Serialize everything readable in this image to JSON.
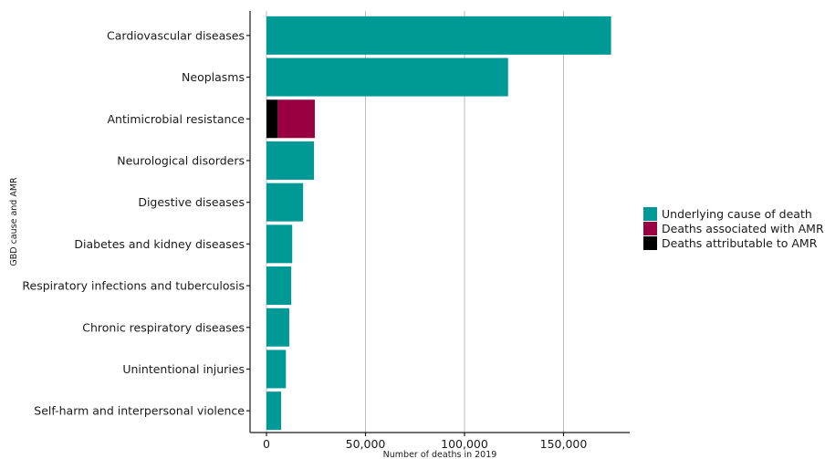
{
  "chart_data": {
    "type": "bar",
    "orientation": "horizontal",
    "stacked": true,
    "title": "",
    "xlabel": "Number of deaths in 2019",
    "ylabel": "GBD cause and AMR",
    "xlim": [
      0,
      182000
    ],
    "xticks": [
      0,
      50000,
      100000,
      150000
    ],
    "xtick_labels": [
      "0",
      "50,000",
      "100,000",
      "150,000"
    ],
    "grid": "vertical",
    "legend_position": "right",
    "categories": [
      "Cardiovascular diseases",
      "Neoplasms",
      "Antimicrobial resistance",
      "Neurological disorders",
      "Digestive diseases",
      "Diabetes and kidney diseases",
      "Respiratory infections and tuberculosis",
      "Chronic respiratory diseases",
      "Unintentional injuries",
      "Self-harm and interpersonal violence"
    ],
    "series": [
      {
        "name": "Underlying cause of death",
        "color": "#009a96",
        "values": [
          174000,
          122000,
          0,
          24000,
          18500,
          13000,
          12500,
          11500,
          9800,
          7400
        ]
      },
      {
        "name": "Deaths attributable to AMR",
        "color": "#000000",
        "values": [
          0,
          0,
          5700,
          0,
          0,
          0,
          0,
          0,
          0,
          0
        ]
      },
      {
        "name": "Deaths associated with AMR",
        "color": "#990041",
        "values": [
          0,
          0,
          18700,
          0,
          0,
          0,
          0,
          0,
          0,
          0
        ]
      }
    ],
    "legend_order": [
      "Underlying cause of death",
      "Deaths associated with AMR",
      "Deaths attributable to AMR"
    ]
  }
}
